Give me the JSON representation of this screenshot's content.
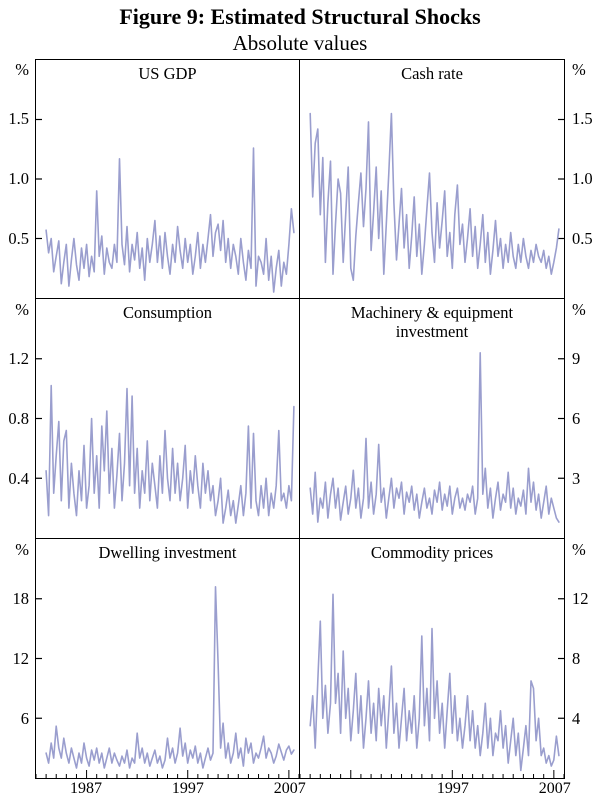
{
  "figure": {
    "title": "Figure 9: Estimated Structural Shocks",
    "subtitle": "Absolute values"
  },
  "style": {
    "line_color": "#9a9ece",
    "frame_color": "#000000",
    "text_color": "#000000",
    "background": "#ffffff"
  },
  "chart_data": [
    {
      "type": "line",
      "id": "us-gdp",
      "title": "US GDP",
      "unit": "%",
      "axis_side": "left",
      "yticks": [
        "0.5",
        "1.0",
        "1.5"
      ],
      "ymax": 2.0,
      "ylim": [
        0,
        2.0
      ],
      "x_start": 1983,
      "x_step": 0.25,
      "x_range": [
        1982,
        2008
      ],
      "show_xticks": false,
      "values": [
        0.57,
        0.38,
        0.5,
        0.22,
        0.35,
        0.48,
        0.12,
        0.3,
        0.45,
        0.1,
        0.32,
        0.5,
        0.28,
        0.15,
        0.42,
        0.25,
        0.45,
        0.18,
        0.35,
        0.22,
        0.9,
        0.35,
        0.52,
        0.2,
        0.42,
        0.3,
        0.25,
        0.45,
        0.3,
        1.17,
        0.45,
        0.28,
        0.6,
        0.22,
        0.45,
        0.32,
        0.55,
        0.25,
        0.42,
        0.15,
        0.5,
        0.3,
        0.45,
        0.65,
        0.3,
        0.52,
        0.25,
        0.55,
        0.35,
        0.2,
        0.45,
        0.3,
        0.6,
        0.4,
        0.25,
        0.5,
        0.3,
        0.45,
        0.2,
        0.35,
        0.55,
        0.25,
        0.45,
        0.3,
        0.5,
        0.7,
        0.35,
        0.55,
        0.62,
        0.4,
        0.65,
        0.3,
        0.5,
        0.25,
        0.45,
        0.35,
        0.2,
        0.5,
        0.3,
        0.15,
        0.4,
        0.25,
        1.26,
        0.1,
        0.35,
        0.3,
        0.2,
        0.5,
        0.15,
        0.35,
        0.05,
        0.25,
        0.4,
        0.1,
        0.3,
        0.2,
        0.45,
        0.75,
        0.55
      ]
    },
    {
      "type": "line",
      "id": "cash-rate",
      "title": "Cash rate",
      "unit": "%",
      "axis_side": "right",
      "yticks": [
        "0.5",
        "1.0",
        "1.5"
      ],
      "ymax": 2.0,
      "ylim": [
        0,
        2.0
      ],
      "x_start": 1983,
      "x_step": 0.25,
      "x_range": [
        1982,
        2008
      ],
      "show_xticks": false,
      "values": [
        1.55,
        0.85,
        1.3,
        1.42,
        0.7,
        1.18,
        0.3,
        0.8,
        1.15,
        0.2,
        0.62,
        1.0,
        0.88,
        0.3,
        0.7,
        1.1,
        0.25,
        0.15,
        0.52,
        0.8,
        1.05,
        0.6,
        0.92,
        1.48,
        0.4,
        0.72,
        1.1,
        0.5,
        0.9,
        0.2,
        0.62,
        1.05,
        1.55,
        0.8,
        0.32,
        0.62,
        0.92,
        0.42,
        0.7,
        0.25,
        0.52,
        0.85,
        0.35,
        0.62,
        0.2,
        0.45,
        0.75,
        1.05,
        0.55,
        0.3,
        0.8,
        0.42,
        0.65,
        0.9,
        0.35,
        0.55,
        0.25,
        0.7,
        0.95,
        0.45,
        0.62,
        0.3,
        0.5,
        0.75,
        0.35,
        0.6,
        0.25,
        0.45,
        0.7,
        0.3,
        0.55,
        0.2,
        0.4,
        0.65,
        0.35,
        0.5,
        0.25,
        0.45,
        0.3,
        0.55,
        0.35,
        0.25,
        0.45,
        0.3,
        0.5,
        0.35,
        0.25,
        0.4,
        0.3,
        0.45,
        0.35,
        0.3,
        0.4,
        0.25,
        0.35,
        0.2,
        0.3,
        0.42,
        0.58
      ]
    },
    {
      "type": "line",
      "id": "consumption",
      "title": "Consumption",
      "unit": "%",
      "axis_side": "left",
      "yticks": [
        "0.4",
        "0.8",
        "1.2"
      ],
      "ymax": 1.6,
      "ylim": [
        0,
        1.6
      ],
      "x_start": 1983,
      "x_step": 0.25,
      "x_range": [
        1982,
        2008
      ],
      "show_xticks": false,
      "values": [
        0.45,
        0.15,
        1.02,
        0.3,
        0.55,
        0.78,
        0.25,
        0.65,
        0.72,
        0.2,
        0.5,
        0.3,
        0.15,
        0.45,
        0.25,
        0.62,
        0.2,
        0.35,
        0.8,
        0.3,
        0.55,
        0.2,
        0.75,
        0.45,
        0.85,
        0.3,
        0.6,
        0.2,
        0.42,
        0.7,
        0.25,
        0.5,
        1.0,
        0.35,
        0.95,
        0.3,
        0.6,
        0.2,
        0.45,
        0.3,
        0.65,
        0.25,
        0.5,
        0.35,
        0.2,
        0.55,
        0.3,
        0.72,
        0.4,
        0.25,
        0.6,
        0.3,
        0.5,
        0.25,
        0.4,
        0.62,
        0.2,
        0.45,
        0.3,
        0.55,
        0.35,
        0.2,
        0.5,
        0.3,
        0.45,
        0.25,
        0.35,
        0.15,
        0.25,
        0.4,
        0.1,
        0.2,
        0.32,
        0.15,
        0.25,
        0.1,
        0.22,
        0.35,
        0.15,
        0.3,
        0.75,
        0.2,
        0.7,
        0.25,
        0.15,
        0.35,
        0.2,
        0.4,
        0.15,
        0.3,
        0.2,
        0.35,
        0.72,
        0.25,
        0.3,
        0.2,
        0.35,
        0.25,
        0.88
      ]
    },
    {
      "type": "line",
      "id": "machinery-equipment-investment",
      "title": "Machinery & equipment investment",
      "unit": "%",
      "axis_side": "right",
      "yticks": [
        "3",
        "6",
        "9"
      ],
      "ymax": 12,
      "ylim": [
        0,
        12
      ],
      "x_start": 1983,
      "x_step": 0.25,
      "x_range": [
        1982,
        2008
      ],
      "show_xticks": false,
      "values": [
        2.5,
        1.2,
        3.3,
        0.8,
        2.0,
        1.5,
        2.8,
        1.0,
        2.2,
        3.0,
        1.5,
        2.5,
        0.9,
        1.8,
        2.6,
        1.2,
        2.0,
        3.4,
        1.5,
        2.5,
        1.0,
        2.0,
        5.0,
        1.5,
        2.8,
        1.2,
        2.2,
        4.7,
        1.8,
        2.5,
        1.0,
        2.0,
        3.0,
        1.5,
        2.5,
        2.0,
        2.8,
        1.2,
        2.3,
        1.8,
        2.6,
        1.4,
        2.2,
        1.0,
        1.8,
        2.5,
        1.5,
        2.0,
        1.2,
        2.4,
        1.8,
        2.8,
        1.4,
        2.2,
        1.6,
        2.6,
        1.2,
        2.0,
        2.5,
        1.5,
        2.0,
        1.4,
        2.2,
        1.8,
        2.6,
        1.2,
        2.0,
        9.3,
        2.2,
        3.5,
        1.5,
        2.5,
        1.0,
        2.0,
        2.8,
        1.4,
        2.2,
        1.8,
        3.3,
        1.5,
        2.5,
        1.2,
        2.0,
        1.6,
        2.4,
        1.2,
        3.5,
        1.8,
        2.8,
        1.4,
        2.2,
        1.0,
        1.8,
        2.6,
        1.2,
        2.0,
        1.5,
        1.0,
        0.8
      ]
    },
    {
      "type": "line",
      "id": "dwelling-investment",
      "title": "Dwelling investment",
      "unit": "%",
      "axis_side": "left",
      "yticks": [
        "6",
        "12",
        "18"
      ],
      "ymax": 24,
      "ylim": [
        0,
        24
      ],
      "x_start": 1983,
      "x_step": 0.25,
      "x_range": [
        1982,
        2008
      ],
      "show_xticks": true,
      "x_labels": [
        {
          "year": 1987,
          "text": "1987"
        },
        {
          "year": 1997,
          "text": "1997"
        },
        {
          "year": 2007,
          "text": "2007"
        }
      ],
      "values": [
        2.5,
        1.5,
        3.5,
        2.0,
        5.2,
        3.0,
        2.0,
        4.0,
        2.5,
        1.5,
        3.0,
        2.0,
        1.0,
        2.5,
        1.5,
        3.5,
        2.0,
        1.2,
        2.8,
        1.8,
        3.0,
        1.5,
        2.5,
        1.0,
        2.0,
        3.0,
        1.5,
        2.5,
        1.8,
        1.2,
        2.2,
        1.5,
        2.8,
        1.0,
        2.0,
        1.5,
        4.5,
        2.0,
        3.0,
        1.5,
        2.5,
        1.2,
        2.0,
        2.8,
        1.5,
        2.2,
        1.0,
        1.8,
        4.0,
        2.0,
        3.0,
        1.5,
        2.5,
        5.0,
        2.2,
        3.5,
        1.5,
        2.8,
        2.0,
        3.2,
        1.5,
        2.5,
        1.0,
        2.0,
        3.0,
        1.8,
        2.5,
        19.2,
        11.5,
        3.0,
        5.5,
        2.0,
        3.5,
        1.5,
        2.5,
        4.5,
        2.0,
        3.0,
        1.2,
        4.0,
        2.5,
        3.5,
        1.5,
        2.5,
        2.0,
        3.0,
        4.2,
        2.0,
        3.0,
        2.5,
        1.5,
        2.2,
        3.4,
        2.6,
        1.8,
        2.8,
        3.2,
        2.4,
        2.8
      ]
    },
    {
      "type": "line",
      "id": "commodity-prices",
      "title": "Commodity prices",
      "unit": "%",
      "axis_side": "right",
      "yticks": [
        "4",
        "8",
        "12"
      ],
      "ymax": 16,
      "ylim": [
        0,
        16
      ],
      "x_start": 1983,
      "x_step": 0.25,
      "x_range": [
        1982,
        2008
      ],
      "show_xticks": true,
      "x_labels": [
        {
          "year": 1997,
          "text": "1997"
        },
        {
          "year": 2007,
          "text": "2007"
        }
      ],
      "values": [
        3.5,
        5.5,
        2.0,
        6.5,
        10.5,
        4.0,
        6.2,
        3.0,
        5.0,
        12.3,
        5.0,
        7.0,
        3.0,
        8.5,
        4.0,
        6.0,
        2.5,
        4.5,
        7.0,
        3.0,
        5.5,
        2.0,
        4.0,
        6.5,
        3.0,
        5.0,
        2.5,
        6.0,
        3.5,
        5.5,
        2.0,
        4.5,
        7.5,
        3.0,
        5.0,
        2.0,
        4.0,
        6.0,
        2.5,
        4.5,
        3.0,
        5.5,
        2.0,
        4.0,
        9.5,
        3.5,
        6.0,
        2.5,
        10.0,
        4.0,
        6.5,
        3.0,
        5.0,
        2.0,
        4.5,
        7.0,
        3.0,
        5.5,
        2.5,
        4.0,
        2.0,
        3.5,
        5.5,
        2.5,
        4.5,
        2.0,
        3.5,
        1.5,
        3.0,
        5.0,
        2.0,
        4.0,
        1.5,
        3.0,
        2.5,
        4.5,
        2.0,
        3.5,
        1.0,
        2.5,
        4.0,
        1.5,
        3.0,
        0.5,
        2.0,
        3.5,
        1.5,
        6.5,
        6.0,
        2.5,
        4.0,
        1.5,
        2.0,
        1.0,
        1.5,
        0.8,
        1.2,
        2.8,
        1.5
      ]
    }
  ]
}
